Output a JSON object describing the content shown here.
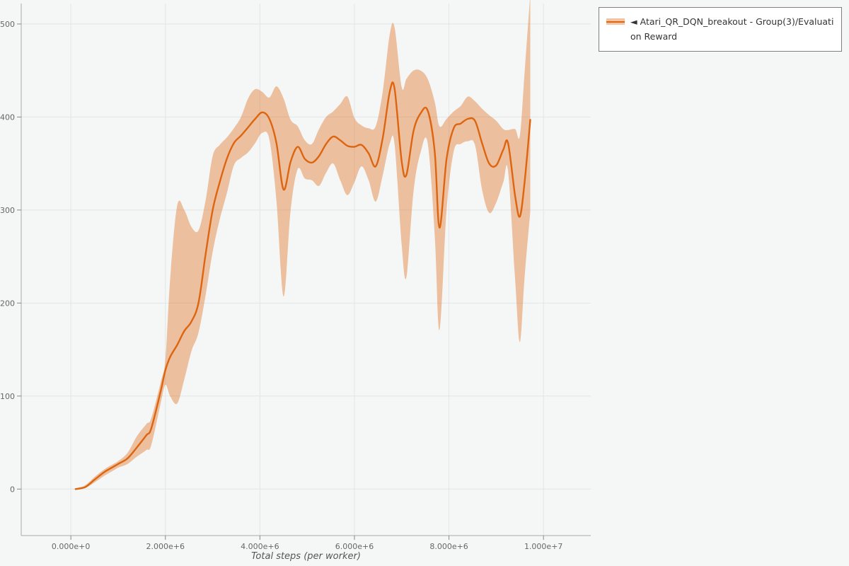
{
  "legend": {
    "marker": "◄",
    "label": "Atari_QR_DQN_breakout - Group(3)/Evaluation Reward"
  },
  "colors": {
    "line": "#dd6510",
    "band": "rgba(221,101,16,0.38)",
    "grid": "#e2e6e6",
    "axis": "#aaaaaa",
    "tick": "#888888",
    "tick_label": "#666666",
    "background": "#f5f7f6",
    "legend_border": "#7f7f7f",
    "legend_background": "#ffffff"
  },
  "chart_data": {
    "type": "line",
    "title": "",
    "xlabel": "Total steps (per worker)",
    "ylabel": "",
    "grid": true,
    "legend_position": "top-right-outside",
    "xlim": [
      -1050000,
      11000000
    ],
    "ylim": [
      -50,
      522
    ],
    "x_ticks": {
      "values": [
        0,
        2000000,
        4000000,
        6000000,
        8000000,
        10000000
      ],
      "labels": [
        "0.000e+0",
        "2.000e+6",
        "4.000e+6",
        "6.000e+6",
        "8.000e+6",
        "1.000e+7"
      ]
    },
    "y_ticks": {
      "values": [
        0,
        100,
        200,
        300,
        400,
        500
      ],
      "labels": [
        "0",
        "100",
        "200",
        "300",
        "400",
        "500"
      ]
    },
    "series": [
      {
        "name": "Atari_QR_DQN_breakout - Group(3)/Evaluation Reward",
        "color": "#dd6510",
        "band_color": "rgba(221,101,16,0.38)",
        "x": [
          100000,
          300000,
          500000,
          700000,
          900000,
          1000000,
          1200000,
          1400000,
          1600000,
          1700000,
          1900000,
          2000000,
          2100000,
          2250000,
          2400000,
          2550000,
          2700000,
          2850000,
          3000000,
          3150000,
          3300000,
          3450000,
          3600000,
          3750000,
          3900000,
          4050000,
          4200000,
          4350000,
          4500000,
          4650000,
          4800000,
          4950000,
          5100000,
          5250000,
          5400000,
          5550000,
          5700000,
          5850000,
          6000000,
          6150000,
          6300000,
          6450000,
          6600000,
          6750000,
          6850000,
          7000000,
          7100000,
          7250000,
          7400000,
          7550000,
          7700000,
          7800000,
          7950000,
          8100000,
          8250000,
          8400000,
          8550000,
          8700000,
          8850000,
          9000000,
          9150000,
          9250000,
          9400000,
          9500000,
          9600000,
          9720000
        ],
        "mean": [
          0,
          2,
          10,
          18,
          24,
          27,
          33,
          45,
          58,
          65,
          105,
          128,
          142,
          155,
          170,
          180,
          200,
          252,
          300,
          330,
          355,
          372,
          380,
          389,
          398,
          405,
          398,
          372,
          322,
          352,
          368,
          355,
          351,
          358,
          371,
          379,
          375,
          369,
          368,
          370,
          361,
          347,
          378,
          428,
          430,
          352,
          338,
          385,
          404,
          407,
          362,
          281,
          355,
          388,
          393,
          398,
          396,
          372,
          350,
          348,
          365,
          372,
          315,
          293,
          330,
          397
        ],
        "low": [
          0,
          1,
          7,
          14,
          20,
          23,
          27,
          35,
          42,
          47,
          92,
          112,
          100,
          92,
          118,
          148,
          168,
          208,
          255,
          290,
          318,
          348,
          356,
          362,
          372,
          383,
          376,
          310,
          207,
          300,
          344,
          334,
          332,
          326,
          340,
          350,
          332,
          316,
          330,
          347,
          332,
          309,
          338,
          372,
          370,
          262,
          228,
          320,
          362,
          372,
          272,
          171,
          300,
          363,
          371,
          374,
          370,
          322,
          297,
          308,
          330,
          342,
          225,
          158,
          228,
          298
        ],
        "high": [
          1,
          4,
          13,
          21,
          27,
          30,
          39,
          57,
          70,
          76,
          115,
          140,
          225,
          305,
          300,
          282,
          278,
          310,
          358,
          370,
          378,
          388,
          400,
          420,
          430,
          427,
          421,
          433,
          420,
          397,
          390,
          375,
          371,
          387,
          400,
          406,
          414,
          422,
          399,
          391,
          388,
          390,
          428,
          490,
          496,
          432,
          441,
          450,
          450,
          441,
          416,
          390,
          398,
          406,
          412,
          422,
          417,
          409,
          402,
          396,
          387,
          386,
          387,
          380,
          448,
          532
        ]
      }
    ]
  }
}
